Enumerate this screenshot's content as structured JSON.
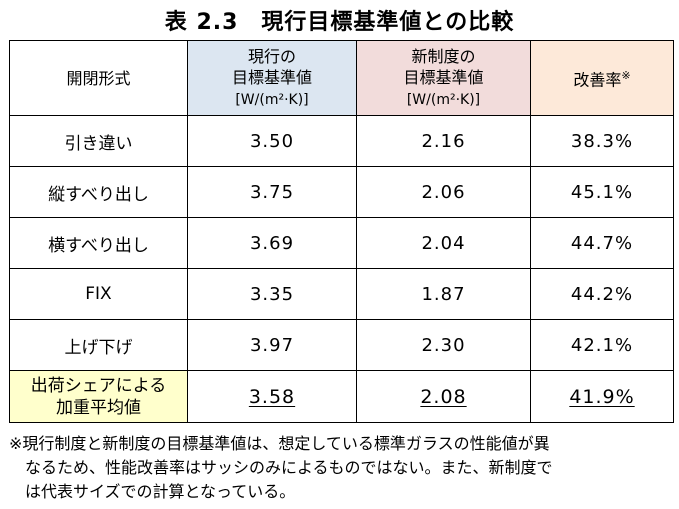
{
  "title": "表 2.3　現行目標基準値との比較",
  "header": {
    "col1": "開閉形式",
    "col2_line1": "現行の",
    "col2_line2": "目標基準値",
    "col2_unit": "[W/(m²·K)]",
    "col3_line1": "新制度の",
    "col3_line2": "目標基準値",
    "col3_unit": "[W/(m²·K)]",
    "col4": "改善率",
    "col4_mark": "※"
  },
  "rows": [
    {
      "type": "引き違い",
      "current": "3.50",
      "new": "2.16",
      "improvement": "38.3%"
    },
    {
      "type": "縦すべり出し",
      "current": "3.75",
      "new": "2.06",
      "improvement": "45.1%"
    },
    {
      "type": "横すべり出し",
      "current": "3.69",
      "new": "2.04",
      "improvement": "44.7%"
    },
    {
      "type": "FIX",
      "current": "3.35",
      "new": "1.87",
      "improvement": "44.2%"
    },
    {
      "type": "上げ下げ",
      "current": "3.97",
      "new": "2.30",
      "improvement": "42.1%"
    }
  ],
  "weighted": {
    "label_line1": "出荷シェアによる",
    "label_line2": "加重平均値",
    "current": "3.58",
    "new": "2.08",
    "improvement": "41.9%"
  },
  "note": {
    "line1": "※現行制度と新制度の目標基準値は、想定している標準ガラスの性能値が異",
    "line2": "なるため、性能改善率はサッシのみによるものではない。また、新制度で",
    "line3": "は代表サイズでの計算となっている。"
  },
  "colors": {
    "current_header": "#dce6f1",
    "new_header": "#f2dcdb",
    "improvement_header": "#fde9d9",
    "weighted_label": "#ffffcc"
  }
}
